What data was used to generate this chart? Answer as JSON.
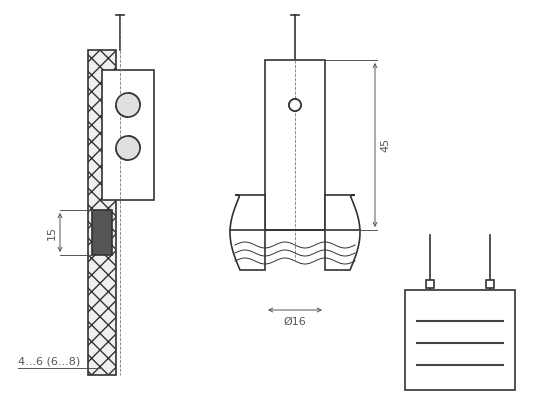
{
  "bg_color": "#ffffff",
  "line_color": "#333333",
  "dim_color": "#555555",
  "hatch_color": "#555555",
  "line_width": 1.2,
  "thin_line": 0.7,
  "dim_line": 0.7,
  "label_15": "15",
  "label_45": "45",
  "label_16": "Ø16",
  "label_thickness": "4...6 (6...8)"
}
